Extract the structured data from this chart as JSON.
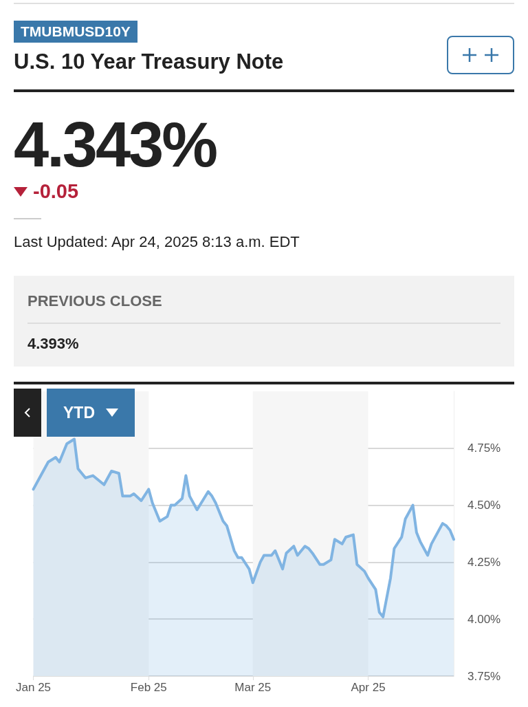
{
  "chart_data": {
    "type": "area",
    "title": "U.S. 10 Year Treasury Note",
    "subtitle": "TMUBMUSD10Y",
    "annotations": [
      "4.343%",
      "-0.05",
      "Last Updated: Apr 24, 2025 8:13 a.m. EDT",
      "PREVIOUS CLOSE",
      "4.393%",
      "YTD"
    ],
    "x": [
      "2025-01-01",
      "2025-01-03",
      "2025-01-05",
      "2025-01-07",
      "2025-01-08",
      "2025-01-10",
      "2025-01-12",
      "2025-01-13",
      "2025-01-15",
      "2025-01-17",
      "2025-01-20",
      "2025-01-22",
      "2025-01-24",
      "2025-01-25",
      "2025-01-27",
      "2025-01-28",
      "2025-01-30",
      "2025-02-01",
      "2025-02-02",
      "2025-02-04",
      "2025-02-06",
      "2025-02-07",
      "2025-02-08",
      "2025-02-10",
      "2025-02-11",
      "2025-02-12",
      "2025-02-14",
      "2025-02-17",
      "2025-02-18",
      "2025-02-19",
      "2025-02-21",
      "2025-02-22",
      "2025-02-24",
      "2025-02-25",
      "2025-02-26",
      "2025-02-28",
      "2025-03-01",
      "2025-03-03",
      "2025-03-04",
      "2025-03-06",
      "2025-03-07",
      "2025-03-09",
      "2025-03-10",
      "2025-03-12",
      "2025-03-13",
      "2025-03-15",
      "2025-03-16",
      "2025-03-17",
      "2025-03-19",
      "2025-03-20",
      "2025-03-22",
      "2025-03-23",
      "2025-03-25",
      "2025-03-26",
      "2025-03-28",
      "2025-03-29",
      "2025-03-31",
      "2025-04-01",
      "2025-04-03",
      "2025-04-04",
      "2025-04-05",
      "2025-04-07",
      "2025-04-08",
      "2025-04-10",
      "2025-04-11",
      "2025-04-13",
      "2025-04-14",
      "2025-04-15",
      "2025-04-17",
      "2025-04-18",
      "2025-04-21",
      "2025-04-22",
      "2025-04-23",
      "2025-04-24"
    ],
    "series": [
      {
        "color": "#80b4e2",
        "values": [
          4.57,
          4.63,
          4.69,
          4.71,
          4.69,
          4.77,
          4.79,
          4.66,
          4.62,
          4.63,
          4.59,
          4.65,
          4.64,
          4.54,
          4.54,
          4.55,
          4.52,
          4.57,
          4.51,
          4.43,
          4.45,
          4.5,
          4.5,
          4.53,
          4.63,
          4.54,
          4.48,
          4.56,
          4.54,
          4.51,
          4.43,
          4.41,
          4.3,
          4.27,
          4.27,
          4.22,
          4.16,
          4.25,
          4.28,
          4.28,
          4.3,
          4.22,
          4.29,
          4.32,
          4.28,
          4.32,
          4.31,
          4.29,
          4.24,
          4.24,
          4.26,
          4.35,
          4.33,
          4.36,
          4.37,
          4.24,
          4.21,
          4.18,
          4.13,
          4.03,
          4.01,
          4.18,
          4.31,
          4.36,
          4.44,
          4.5,
          4.38,
          4.34,
          4.28,
          4.33,
          4.42,
          4.41,
          4.39,
          4.35
        ]
      }
    ],
    "xlim": [
      "2025-01-01",
      "2025-04-24"
    ],
    "xticks": [
      {
        "value": "2025-01-01",
        "label": "Jan 25"
      },
      {
        "value": "2025-02-01",
        "label": "Feb 25"
      },
      {
        "value": "2025-03-01",
        "label": "Mar 25"
      },
      {
        "value": "2025-04-01",
        "label": "Apr 25"
      }
    ],
    "ylim": [
      3.75,
      5.0
    ],
    "yticks": [
      {
        "value": 3.75,
        "label": "3.75%"
      },
      {
        "value": 4.0,
        "label": "4.00%"
      },
      {
        "value": 4.25,
        "label": "4.25%"
      },
      {
        "value": 4.5,
        "label": "4.50%"
      },
      {
        "value": 4.75,
        "label": "4.75%"
      }
    ],
    "bands": [
      {
        "axis": "x",
        "from": "2025-01-01",
        "to": "2025-02-01",
        "color": "#f6f6f6"
      },
      {
        "axis": "x",
        "from": "2025-03-01",
        "to": "2025-04-01",
        "color": "#f6f6f6"
      }
    ],
    "grid": "y",
    "marker": "none",
    "line_style": "solid"
  }
}
